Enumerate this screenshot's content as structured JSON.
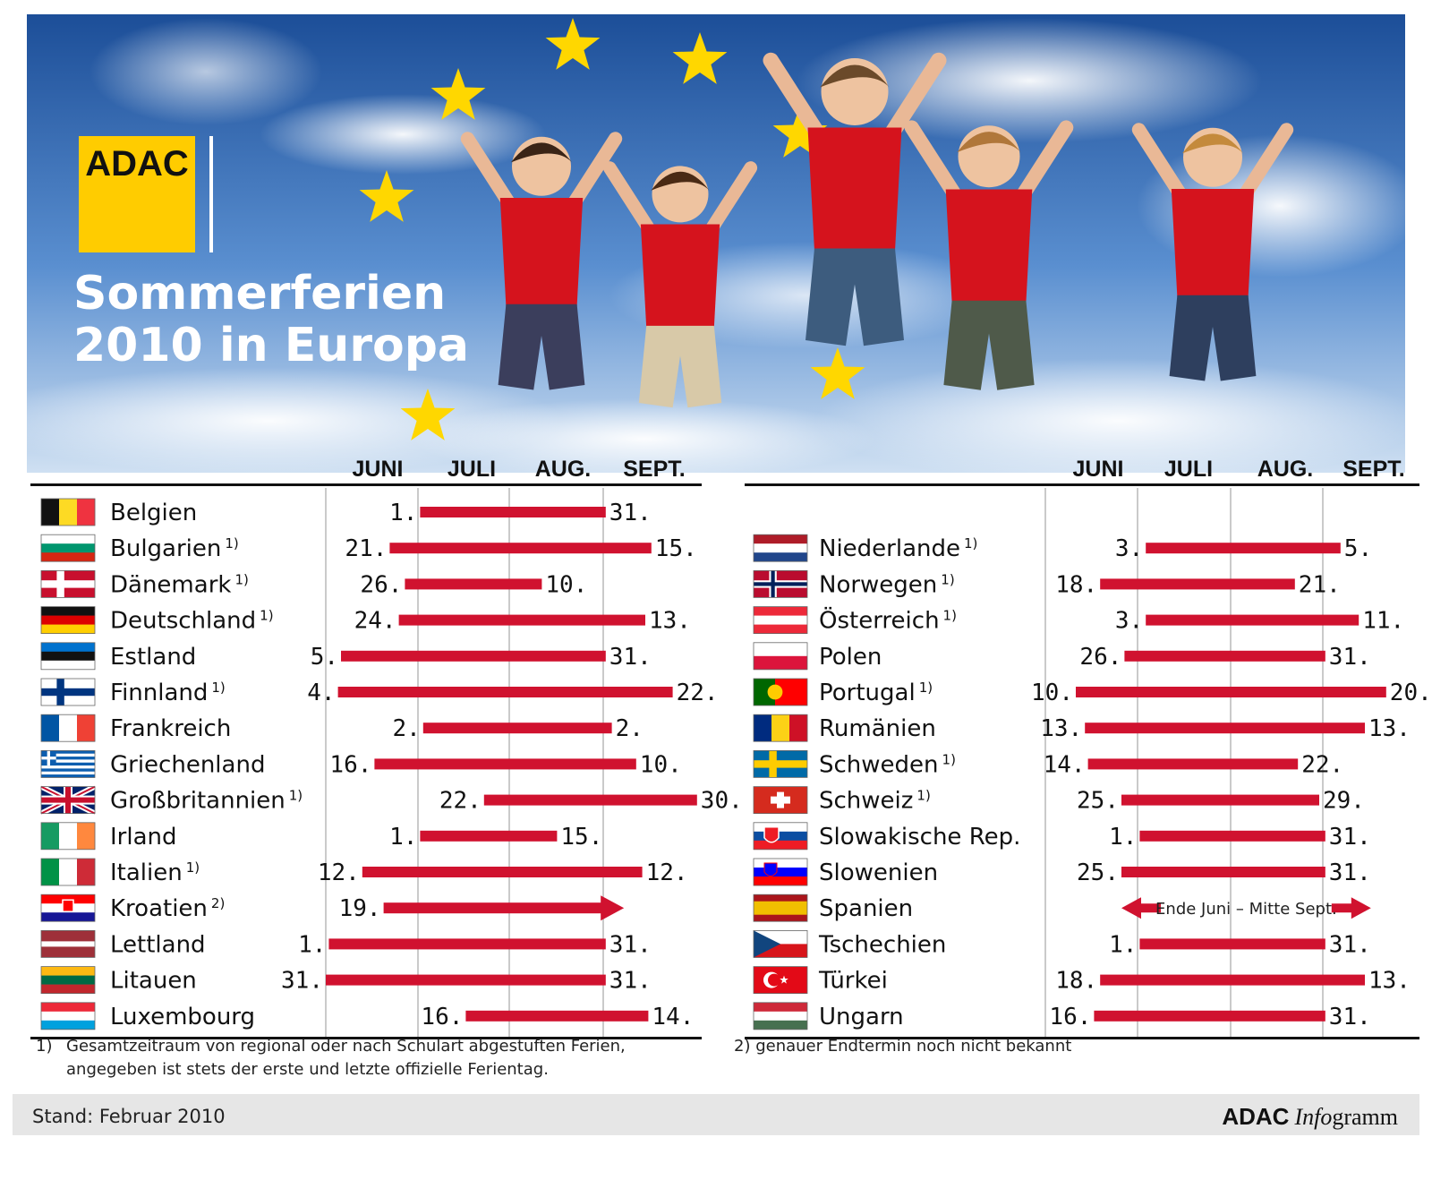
{
  "header": {
    "logo": "ADAC",
    "title_line1": "Sommerferien",
    "title_line2": "2010 in Europa"
  },
  "months": [
    "JUNI",
    "JULI",
    "AUG.",
    "SEPT."
  ],
  "footnotes": {
    "note1_marker": "1)",
    "note1_line1": "Gesamtzeitraum von regional oder nach Schulart abgestuften Ferien,",
    "note1_line2": "angegeben ist stets der erste und letzte offizielle Ferientag.",
    "note2": "2) genauer Endtermin noch nicht bekannt"
  },
  "footer": {
    "stand": "Stand: Februar 2010",
    "brand_bold": "ADAC",
    "brand_italic": "Info",
    "brand_rest": "gramm"
  },
  "colors": {
    "bar": "#d0122f",
    "logo_yellow": "#ffcc00",
    "star": "#ffd700",
    "sky_top": "#1c4e98",
    "sky_bottom": "#cfe0f2",
    "footer_bg": "#e6e6e6"
  },
  "chart_data": {
    "type": "gantt",
    "x_axis": [
      "JUNI",
      "JULI",
      "AUG.",
      "SEPT."
    ],
    "left_column": [
      {
        "country": "Belgien",
        "note": "",
        "flag": "be",
        "start": "1.",
        "end": "31.",
        "start_date": "07-01",
        "end_date": "08-31"
      },
      {
        "country": "Bulgarien",
        "note": "1)",
        "flag": "bg",
        "start": "21.",
        "end": "15.",
        "start_date": "06-21",
        "end_date": "09-15"
      },
      {
        "country": "Dänemark",
        "note": "1)",
        "flag": "dk",
        "start": "26.",
        "end": "10.",
        "start_date": "06-26",
        "end_date": "08-10"
      },
      {
        "country": "Deutschland",
        "note": "1)",
        "flag": "de",
        "start": "24.",
        "end": "13.",
        "start_date": "06-24",
        "end_date": "09-13"
      },
      {
        "country": "Estland",
        "note": "",
        "flag": "ee",
        "start": "5.",
        "end": "31.",
        "start_date": "06-05",
        "end_date": "08-31"
      },
      {
        "country": "Finnland",
        "note": "1)",
        "flag": "fi",
        "start": "4.",
        "end": "22.",
        "start_date": "06-04",
        "end_date": "09-22"
      },
      {
        "country": "Frankreich",
        "note": "",
        "flag": "fr",
        "start": "2.",
        "end": "2.",
        "start_date": "07-02",
        "end_date": "09-02"
      },
      {
        "country": "Griechenland",
        "note": "",
        "flag": "gr",
        "start": "16.",
        "end": "10.",
        "start_date": "06-16",
        "end_date": "09-10"
      },
      {
        "country": "Großbritannien",
        "note": "1)",
        "flag": "gb",
        "start": "22.",
        "end": "30.",
        "start_date": "07-22",
        "end_date": "09-30"
      },
      {
        "country": "Irland",
        "note": "",
        "flag": "ie",
        "start": "1.",
        "end": "15.",
        "start_date": "07-01",
        "end_date": "08-15"
      },
      {
        "country": "Italien",
        "note": "1)",
        "flag": "it",
        "start": "12.",
        "end": "12.",
        "start_date": "06-12",
        "end_date": "09-12"
      },
      {
        "country": "Kroatien",
        "note": "2)",
        "flag": "hr",
        "start": "19.",
        "end": "",
        "start_date": "06-19",
        "end_date": "",
        "open_end": true
      },
      {
        "country": "Lettland",
        "note": "",
        "flag": "lv",
        "start": "1.",
        "end": "31.",
        "start_date": "06-01",
        "end_date": "08-31"
      },
      {
        "country": "Litauen",
        "note": "",
        "flag": "lt",
        "start": "31.",
        "end": "31.",
        "start_date": "05-31",
        "end_date": "08-31"
      },
      {
        "country": "Luxembourg",
        "note": "",
        "flag": "lu",
        "start": "16.",
        "end": "14.",
        "start_date": "07-16",
        "end_date": "09-14"
      }
    ],
    "right_column": [
      {
        "country": "Niederlande",
        "note": "1)",
        "flag": "nl",
        "start": "3.",
        "end": "5.",
        "start_date": "07-03",
        "end_date": "09-05"
      },
      {
        "country": "Norwegen",
        "note": "1)",
        "flag": "no",
        "start": "18.",
        "end": "21.",
        "start_date": "06-18",
        "end_date": "08-21"
      },
      {
        "country": "Österreich",
        "note": "1)",
        "flag": "at",
        "start": "3.",
        "end": "11.",
        "start_date": "07-03",
        "end_date": "09-11"
      },
      {
        "country": "Polen",
        "note": "",
        "flag": "pl",
        "start": "26.",
        "end": "31.",
        "start_date": "06-26",
        "end_date": "08-31"
      },
      {
        "country": "Portugal",
        "note": "1)",
        "flag": "pt",
        "start": "10.",
        "end": "20.",
        "start_date": "06-10",
        "end_date": "09-20"
      },
      {
        "country": "Rumänien",
        "note": "",
        "flag": "ro",
        "start": "13.",
        "end": "13.",
        "start_date": "06-13",
        "end_date": "09-13"
      },
      {
        "country": "Schweden",
        "note": "1)",
        "flag": "se",
        "start": "14.",
        "end": "22.",
        "start_date": "06-14",
        "end_date": "08-22"
      },
      {
        "country": "Schweiz",
        "note": "1)",
        "flag": "ch",
        "start": "25.",
        "end": "29.",
        "start_date": "06-25",
        "end_date": "08-29"
      },
      {
        "country": "Slowakische Rep.",
        "note": "",
        "flag": "sk",
        "start": "1.",
        "end": "31.",
        "start_date": "07-01",
        "end_date": "08-31"
      },
      {
        "country": "Slowenien",
        "note": "",
        "flag": "si",
        "start": "25.",
        "end": "31.",
        "start_date": "06-25",
        "end_date": "08-31"
      },
      {
        "country": "Spanien",
        "note": "",
        "flag": "es",
        "start": "",
        "end": "",
        "start_date": "",
        "end_date": "",
        "range_text": "Ende Juni – Mitte Sept."
      },
      {
        "country": "Tschechien",
        "note": "",
        "flag": "cz",
        "start": "1.",
        "end": "31.",
        "start_date": "07-01",
        "end_date": "08-31"
      },
      {
        "country": "Türkei",
        "note": "",
        "flag": "tr",
        "start": "18.",
        "end": "13.",
        "start_date": "06-18",
        "end_date": "09-13"
      },
      {
        "country": "Ungarn",
        "note": "",
        "flag": "hu",
        "start": "16.",
        "end": "31.",
        "start_date": "06-16",
        "end_date": "08-31"
      }
    ]
  }
}
